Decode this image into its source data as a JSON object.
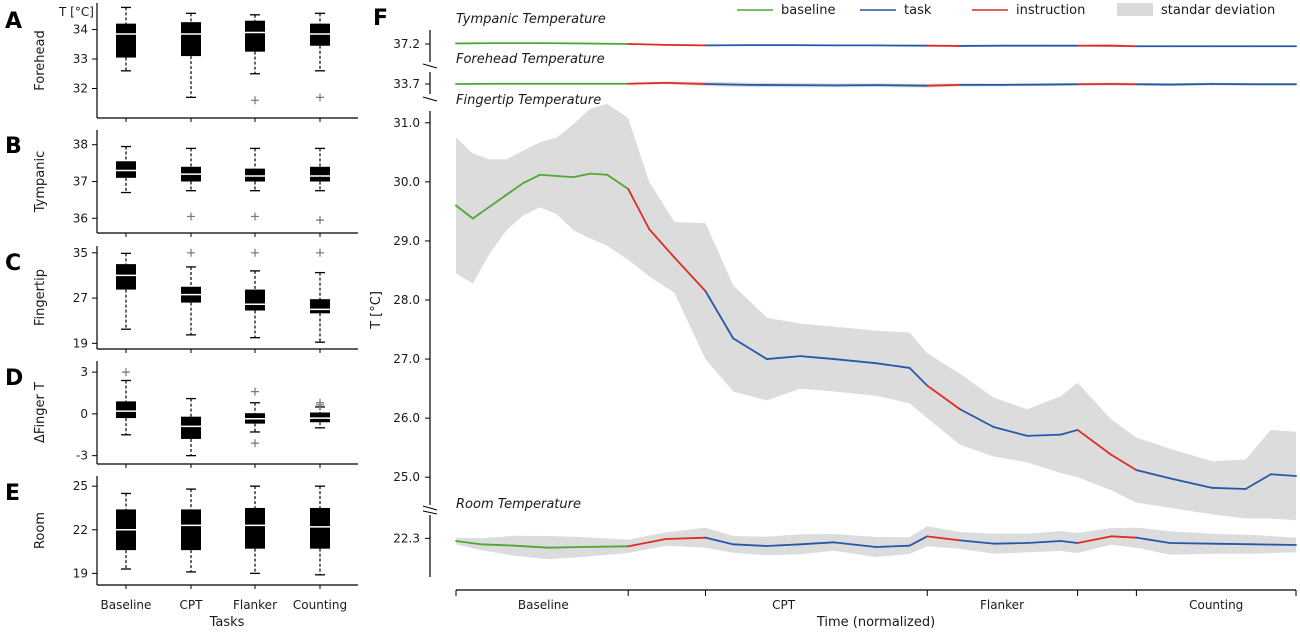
{
  "figure": {
    "left_letters": [
      "A",
      "B",
      "C",
      "D",
      "E"
    ],
    "right_letter": "F",
    "units_title": "T [°C]"
  },
  "chart_data": [
    {
      "type": "box",
      "panel": "A",
      "ylabel": "Forehead",
      "ylim": [
        31.0,
        34.9
      ],
      "yticks": [
        32,
        33,
        34
      ],
      "categories": [
        "Baseline",
        "CPT",
        "Flanker",
        "Counting"
      ],
      "boxes": [
        {
          "whisker_low": 32.6,
          "q1": 33.05,
          "median": 33.85,
          "q3": 34.2,
          "whisker_high": 34.75,
          "outliers": []
        },
        {
          "whisker_low": 31.7,
          "q1": 33.1,
          "median": 33.85,
          "q3": 34.25,
          "whisker_high": 34.55,
          "outliers": []
        },
        {
          "whisker_low": 32.5,
          "q1": 33.25,
          "median": 33.9,
          "q3": 34.3,
          "whisker_high": 34.5,
          "outliers": [
            31.6
          ]
        },
        {
          "whisker_low": 32.6,
          "q1": 33.45,
          "median": 33.85,
          "q3": 34.2,
          "whisker_high": 34.55,
          "outliers": [
            31.7
          ]
        }
      ]
    },
    {
      "type": "box",
      "panel": "B",
      "ylabel": "Tympanic",
      "ylim": [
        35.6,
        38.4
      ],
      "yticks": [
        36,
        37,
        38
      ],
      "categories": [
        "Baseline",
        "CPT",
        "Flanker",
        "Counting"
      ],
      "boxes": [
        {
          "whisker_low": 36.7,
          "q1": 37.1,
          "median": 37.3,
          "q3": 37.55,
          "whisker_high": 37.95,
          "outliers": []
        },
        {
          "whisker_low": 36.75,
          "q1": 37.0,
          "median": 37.2,
          "q3": 37.4,
          "whisker_high": 37.9,
          "outliers": [
            36.05
          ]
        },
        {
          "whisker_low": 36.75,
          "q1": 37.0,
          "median": 37.15,
          "q3": 37.35,
          "whisker_high": 37.9,
          "outliers": [
            36.05
          ]
        },
        {
          "whisker_low": 36.75,
          "q1": 37.0,
          "median": 37.15,
          "q3": 37.4,
          "whisker_high": 37.9,
          "outliers": [
            35.95
          ]
        }
      ]
    },
    {
      "type": "box",
      "panel": "C",
      "ylabel": "Fingertip",
      "ylim": [
        18.0,
        36.2
      ],
      "yticks": [
        19,
        27,
        35
      ],
      "yticklabels": [
        "19",
        "27",
        "35"
      ],
      "categories": [
        "Baseline",
        "CPT",
        "Flanker",
        "Counting"
      ],
      "boxes": [
        {
          "whisker_low": 21.5,
          "q1": 28.5,
          "median": 31.0,
          "q3": 33.0,
          "whisker_high": 34.9,
          "outliers": []
        },
        {
          "whisker_low": 20.5,
          "q1": 26.2,
          "median": 27.6,
          "q3": 29.0,
          "whisker_high": 32.5,
          "outliers": [
            35.0
          ]
        },
        {
          "whisker_low": 20.0,
          "q1": 24.8,
          "median": 25.9,
          "q3": 28.5,
          "whisker_high": 31.8,
          "outliers": [
            35.0
          ]
        },
        {
          "whisker_low": 19.2,
          "q1": 24.3,
          "median": 25.0,
          "q3": 26.8,
          "whisker_high": 31.5,
          "outliers": [
            35.0
          ]
        }
      ]
    },
    {
      "type": "box",
      "panel": "D",
      "ylabel": "ΔFinger T",
      "ylim": [
        -3.6,
        3.8
      ],
      "yticks": [
        -3,
        0,
        3
      ],
      "categories": [
        "Baseline",
        "CPT",
        "Flanker",
        "Counting"
      ],
      "boxes": [
        {
          "whisker_low": -1.5,
          "q1": -0.3,
          "median": 0.2,
          "q3": 0.9,
          "whisker_high": 2.4,
          "outliers": [
            3.0
          ]
        },
        {
          "whisker_low": -3.0,
          "q1": -1.8,
          "median": -0.9,
          "q3": -0.2,
          "whisker_high": 1.1,
          "outliers": []
        },
        {
          "whisker_low": -1.3,
          "q1": -0.7,
          "median": -0.35,
          "q3": 0.05,
          "whisker_high": 0.8,
          "outliers": [
            1.6,
            -2.1
          ]
        },
        {
          "whisker_low": -1.0,
          "q1": -0.6,
          "median": -0.3,
          "q3": 0.1,
          "whisker_high": 0.5,
          "outliers": [
            0.8,
            0.65
          ]
        }
      ]
    },
    {
      "type": "box",
      "panel": "E",
      "ylabel": "Room",
      "xlabel": "Tasks",
      "ylim": [
        18.2,
        25.7
      ],
      "yticks": [
        19,
        22,
        25
      ],
      "categories": [
        "Baseline",
        "CPT",
        "Flanker",
        "Counting"
      ],
      "boxes": [
        {
          "whisker_low": 19.3,
          "q1": 20.6,
          "median": 22.0,
          "q3": 23.4,
          "whisker_high": 24.5,
          "outliers": []
        },
        {
          "whisker_low": 19.1,
          "q1": 20.6,
          "median": 22.3,
          "q3": 23.4,
          "whisker_high": 24.8,
          "outliers": []
        },
        {
          "whisker_low": 19.0,
          "q1": 20.7,
          "median": 22.3,
          "q3": 23.5,
          "whisker_high": 25.0,
          "outliers": []
        },
        {
          "whisker_low": 18.9,
          "q1": 20.7,
          "median": 22.2,
          "q3": 23.5,
          "whisker_high": 25.0,
          "outliers": []
        }
      ]
    },
    {
      "type": "line",
      "panel": "F",
      "xlabel": "Time (normalized)",
      "ylabel": "T [°C]",
      "phase_labels": [
        "Baseline",
        "CPT",
        "Flanker",
        "Counting"
      ],
      "phase_bounds": [
        0.0,
        0.205,
        0.297,
        0.561,
        0.74,
        0.81,
        1.0
      ],
      "legend": [
        {
          "label": "baseline",
          "color": "#4ea832",
          "kind": "line"
        },
        {
          "label": "task",
          "color": "#2558a8",
          "kind": "line"
        },
        {
          "label": "instruction",
          "color": "#de2d26",
          "kind": "line"
        },
        {
          "label": "standar deviation",
          "color": "#d9d9d9",
          "kind": "patch"
        }
      ],
      "sub_charts": [
        {
          "title": "Tympanic Temperature",
          "ytick": "37.2",
          "ylim": [
            36.7,
            37.7
          ],
          "x": [
            0,
            0.05,
            0.1,
            0.15,
            0.205,
            0.25,
            0.297,
            0.35,
            0.4,
            0.45,
            0.5,
            0.561,
            0.6,
            0.65,
            0.7,
            0.74,
            0.78,
            0.81,
            0.85,
            0.9,
            0.95,
            1.0
          ],
          "mean": [
            37.22,
            37.23,
            37.23,
            37.22,
            37.2,
            37.17,
            37.15,
            37.16,
            37.16,
            37.15,
            37.15,
            37.14,
            37.13,
            37.14,
            37.14,
            37.14,
            37.14,
            37.12,
            37.12,
            37.12,
            37.12,
            37.12
          ],
          "sd": [
            0.02,
            0.02,
            0.02,
            0.02,
            0.02,
            0.03,
            0.03,
            0.02,
            0.02,
            0.02,
            0.02,
            0.03,
            0.02,
            0.02,
            0.02,
            0.02,
            0.05,
            0.03,
            0.02,
            0.02,
            0.02,
            0.02
          ]
        },
        {
          "title": "Forehead Temperature",
          "ytick": "33.7",
          "ylim": [
            33.2,
            34.2
          ],
          "x": [
            0,
            0.05,
            0.1,
            0.15,
            0.205,
            0.25,
            0.297,
            0.35,
            0.4,
            0.45,
            0.5,
            0.561,
            0.6,
            0.65,
            0.7,
            0.74,
            0.78,
            0.81,
            0.85,
            0.9,
            0.95,
            1.0
          ],
          "mean": [
            33.7,
            33.71,
            33.71,
            33.71,
            33.71,
            33.74,
            33.7,
            33.67,
            33.66,
            33.65,
            33.66,
            33.64,
            33.67,
            33.67,
            33.68,
            33.69,
            33.7,
            33.69,
            33.68,
            33.7,
            33.69,
            33.69
          ],
          "sd": [
            0.03,
            0.03,
            0.03,
            0.03,
            0.03,
            0.05,
            0.08,
            0.08,
            0.08,
            0.07,
            0.07,
            0.07,
            0.06,
            0.05,
            0.05,
            0.05,
            0.05,
            0.05,
            0.05,
            0.05,
            0.05,
            0.05
          ]
        },
        {
          "title": "Fingertip Temperature",
          "yticks": [
            "25.0",
            "26.0",
            "27.0",
            "28.0",
            "29.0",
            "30.0",
            "31.0"
          ],
          "ylim": [
            24.8,
            31.2
          ],
          "x": [
            0,
            0.02,
            0.04,
            0.06,
            0.08,
            0.1,
            0.12,
            0.14,
            0.16,
            0.18,
            0.205,
            0.23,
            0.26,
            0.297,
            0.33,
            0.37,
            0.41,
            0.45,
            0.5,
            0.54,
            0.561,
            0.6,
            0.64,
            0.68,
            0.72,
            0.74,
            0.78,
            0.81,
            0.85,
            0.9,
            0.94,
            0.97,
            1.0
          ],
          "mean": [
            29.6,
            29.38,
            29.58,
            29.78,
            29.98,
            30.12,
            30.1,
            30.08,
            30.14,
            30.12,
            29.88,
            29.2,
            28.72,
            28.15,
            27.35,
            27.0,
            27.05,
            27.0,
            26.93,
            26.85,
            26.55,
            26.15,
            25.85,
            25.7,
            25.72,
            25.8,
            25.38,
            25.12,
            24.98,
            24.82,
            24.8,
            25.05,
            25.02
          ],
          "sd": [
            1.15,
            1.1,
            0.8,
            0.6,
            0.55,
            0.55,
            0.65,
            0.9,
            1.1,
            1.2,
            1.2,
            0.8,
            0.6,
            1.15,
            0.9,
            0.7,
            0.55,
            0.55,
            0.55,
            0.6,
            0.55,
            0.6,
            0.5,
            0.45,
            0.65,
            0.8,
            0.6,
            0.55,
            0.5,
            0.45,
            0.5,
            0.75,
            0.75
          ]
        },
        {
          "title": "Room Temperature",
          "ytick": "22.3",
          "ylim": [
            21.2,
            23.0
          ],
          "x": [
            0,
            0.03,
            0.07,
            0.11,
            0.15,
            0.205,
            0.25,
            0.297,
            0.33,
            0.37,
            0.41,
            0.45,
            0.5,
            0.54,
            0.561,
            0.6,
            0.64,
            0.68,
            0.72,
            0.74,
            0.78,
            0.81,
            0.85,
            0.9,
            0.95,
            1.0
          ],
          "mean": [
            22.22,
            22.12,
            22.08,
            22.02,
            22.04,
            22.06,
            22.28,
            22.32,
            22.12,
            22.07,
            22.12,
            22.18,
            22.04,
            22.08,
            22.36,
            22.24,
            22.14,
            22.16,
            22.22,
            22.16,
            22.36,
            22.32,
            22.16,
            22.14,
            22.12,
            22.1
          ],
          "sd": [
            0.1,
            0.18,
            0.3,
            0.35,
            0.3,
            0.2,
            0.2,
            0.3,
            0.25,
            0.28,
            0.3,
            0.25,
            0.3,
            0.25,
            0.3,
            0.25,
            0.3,
            0.28,
            0.3,
            0.3,
            0.25,
            0.3,
            0.35,
            0.3,
            0.28,
            0.22
          ]
        }
      ]
    }
  ]
}
